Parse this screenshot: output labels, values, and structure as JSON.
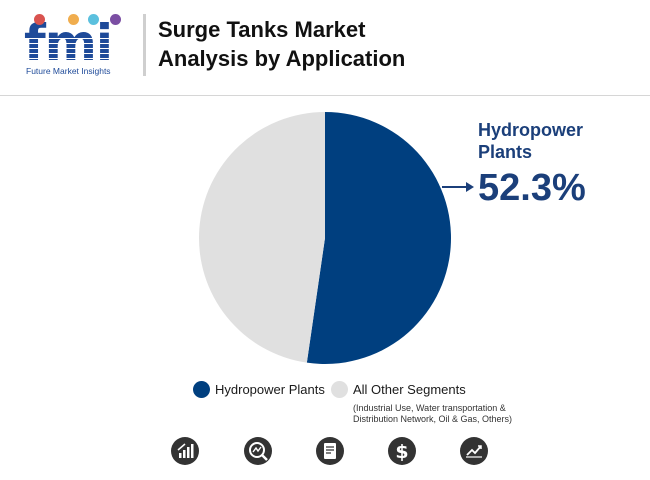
{
  "brand": {
    "letters": "fmi",
    "name": "Future Market Insights",
    "dot_colors": [
      "#d9534f",
      "#f0ad4e",
      "#5bc0de",
      "#7b4ea3"
    ]
  },
  "header": {
    "title_line1": "Surge Tanks Market",
    "title_line2": "Analysis by Application"
  },
  "chart_data": {
    "type": "pie",
    "slices": [
      {
        "label": "Hydropower Plants",
        "value": 52.3,
        "color": "#003f7f"
      },
      {
        "label": "All Other Segments",
        "value": 47.7,
        "color": "#e0e0e0"
      }
    ],
    "highlight": {
      "label_line1": "Hydropower",
      "label_line2": "Plants",
      "value_text": "52.3%"
    },
    "legend": {
      "placement": "bottom",
      "items": [
        {
          "label": "Hydropower Plants",
          "color": "#003f7f"
        },
        {
          "label": "All Other Segments",
          "color": "#e0e0e0"
        }
      ],
      "note_line1": "(Industrial Use, Water transportation &",
      "note_line2": "Distribution Network, Oil & Gas, Others)"
    }
  },
  "footer_icons": [
    "growth-chart-icon",
    "magnifier-trend-icon",
    "report-document-icon",
    "dollar-icon",
    "line-trend-icon"
  ],
  "colors": {
    "accent": "#1b3f7a",
    "icon_bg": "#333333"
  }
}
